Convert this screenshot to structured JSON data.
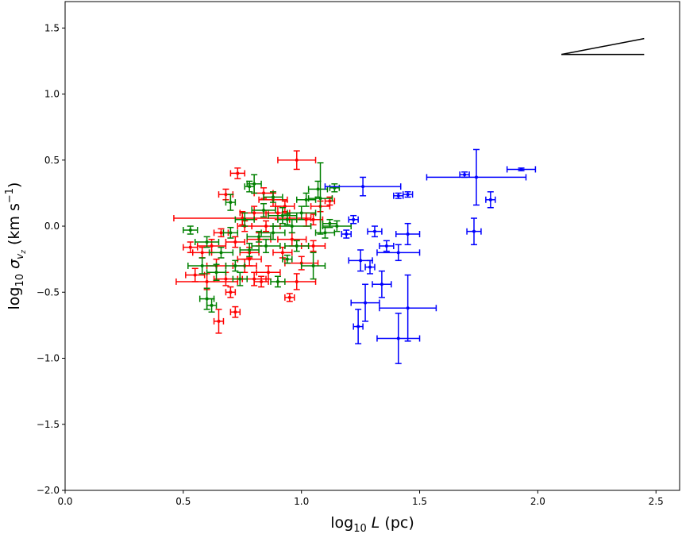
{
  "chart_data": {
    "type": "scatter",
    "title": "",
    "xlabel": {
      "prefix": "log",
      "sub": "10",
      "var": "L",
      "unit": " (pc)"
    },
    "ylabel": {
      "prefix": "log",
      "sub": "10",
      "var": "σ",
      "varsub": "v",
      "varsubsub": "z",
      "unit": " (km s",
      "exp": "−1",
      "close": ")"
    },
    "xlim": [
      0.0,
      2.6
    ],
    "ylim": [
      -2.0,
      1.7
    ],
    "xticks": [
      0.0,
      0.5,
      1.0,
      1.5,
      2.0,
      2.5
    ],
    "xtick_labels": [
      "0.0",
      "0.5",
      "1.0",
      "1.5",
      "2.0",
      "2.5"
    ],
    "yticks": [
      -2.0,
      -1.5,
      -1.0,
      -0.5,
      0.0,
      0.5,
      1.0,
      1.5
    ],
    "ytick_labels": [
      "−2.0",
      "−1.5",
      "−1.0",
      "−0.5",
      "0.0",
      "0.5",
      "1.0",
      "1.5"
    ],
    "grid": false,
    "legend": "none",
    "slope_guide": {
      "x": [
        2.1,
        2.45
      ],
      "y0": 1.3,
      "y1": 1.42
    },
    "series": [
      {
        "color": "#ff0000",
        "points": [
          {
            "x": 0.73,
            "y": 0.4,
            "xerr": 0.03,
            "yerr": 0.04
          },
          {
            "x": 0.98,
            "y": 0.5,
            "xerr": 0.08,
            "yerr": 0.07
          },
          {
            "x": 0.68,
            "y": 0.24,
            "xerr": 0.03,
            "yerr": 0.04
          },
          {
            "x": 0.75,
            "y": 0.06,
            "xerr": 0.29,
            "yerr": 0.05
          },
          {
            "x": 0.72,
            "y": -0.65,
            "xerr": 0.02,
            "yerr": 0.04
          },
          {
            "x": 0.65,
            "y": -0.72,
            "xerr": 0.02,
            "yerr": 0.09
          },
          {
            "x": 0.6,
            "y": -0.42,
            "xerr": 0.13,
            "yerr": 0.06
          },
          {
            "x": 0.55,
            "y": -0.37,
            "xerr": 0.04,
            "yerr": 0.05
          },
          {
            "x": 0.95,
            "y": -0.54,
            "xerr": 0.02,
            "yerr": 0.03
          },
          {
            "x": 0.98,
            "y": -0.42,
            "xerr": 0.08,
            "yerr": 0.06
          },
          {
            "x": 1.0,
            "y": -0.28,
            "xerr": 0.07,
            "yerr": 0.05
          },
          {
            "x": 1.12,
            "y": 0.19,
            "xerr": 0.02,
            "yerr": 0.03
          },
          {
            "x": 1.08,
            "y": 0.15,
            "xerr": 0.04,
            "yerr": 0.04
          },
          {
            "x": 1.05,
            "y": 0.05,
            "xerr": 0.03,
            "yerr": 0.04
          },
          {
            "x": 0.9,
            "y": 0.1,
            "xerr": 0.05,
            "yerr": 0.05
          },
          {
            "x": 0.85,
            "y": 0.0,
            "xerr": 0.06,
            "yerr": 0.04
          },
          {
            "x": 0.82,
            "y": -0.1,
            "xerr": 0.05,
            "yerr": 0.05
          },
          {
            "x": 0.78,
            "y": -0.2,
            "xerr": 0.04,
            "yerr": 0.04
          },
          {
            "x": 0.76,
            "y": -0.3,
            "xerr": 0.05,
            "yerr": 0.05
          },
          {
            "x": 0.8,
            "y": -0.4,
            "xerr": 0.05,
            "yerr": 0.05
          },
          {
            "x": 0.7,
            "y": -0.5,
            "xerr": 0.02,
            "yerr": 0.04
          },
          {
            "x": 0.62,
            "y": -0.15,
            "xerr": 0.06,
            "yerr": 0.05
          },
          {
            "x": 0.58,
            "y": -0.2,
            "xerr": 0.04,
            "yerr": 0.04
          },
          {
            "x": 0.66,
            "y": -0.05,
            "xerr": 0.03,
            "yerr": 0.03
          },
          {
            "x": 0.72,
            "y": -0.12,
            "xerr": 0.04,
            "yerr": 0.04
          },
          {
            "x": 0.88,
            "y": 0.2,
            "xerr": 0.06,
            "yerr": 0.05
          },
          {
            "x": 0.93,
            "y": 0.15,
            "xerr": 0.04,
            "yerr": 0.04
          },
          {
            "x": 1.02,
            "y": 0.05,
            "xerr": 0.07,
            "yerr": 0.05
          },
          {
            "x": 0.96,
            "y": -0.1,
            "xerr": 0.06,
            "yerr": 0.05
          },
          {
            "x": 0.92,
            "y": -0.2,
            "xerr": 0.04,
            "yerr": 0.04
          },
          {
            "x": 0.86,
            "y": -0.35,
            "xerr": 0.05,
            "yerr": 0.05
          },
          {
            "x": 0.83,
            "y": -0.42,
            "xerr": 0.03,
            "yerr": 0.04
          },
          {
            "x": 0.78,
            "y": -0.25,
            "xerr": 0.05,
            "yerr": 0.05
          },
          {
            "x": 0.64,
            "y": -0.3,
            "xerr": 0.04,
            "yerr": 0.05
          },
          {
            "x": 0.68,
            "y": -0.4,
            "xerr": 0.05,
            "yerr": 0.05
          },
          {
            "x": 0.53,
            "y": -0.16,
            "xerr": 0.03,
            "yerr": 0.04
          },
          {
            "x": 1.05,
            "y": -0.15,
            "xerr": 0.05,
            "yerr": 0.04
          },
          {
            "x": 0.8,
            "y": 0.1,
            "xerr": 0.06,
            "yerr": 0.05
          },
          {
            "x": 0.84,
            "y": 0.25,
            "xerr": 0.04,
            "yerr": 0.04
          },
          {
            "x": 0.76,
            "y": 0.0,
            "xerr": 0.03,
            "yerr": 0.04
          }
        ]
      },
      {
        "color": "#008000",
        "points": [
          {
            "x": 0.53,
            "y": -0.03,
            "xerr": 0.03,
            "yerr": 0.03
          },
          {
            "x": 0.6,
            "y": -0.55,
            "xerr": 0.03,
            "yerr": 0.08
          },
          {
            "x": 0.62,
            "y": -0.6,
            "xerr": 0.02,
            "yerr": 0.05
          },
          {
            "x": 0.58,
            "y": -0.3,
            "xerr": 0.06,
            "yerr": 0.06
          },
          {
            "x": 0.7,
            "y": 0.18,
            "xerr": 0.02,
            "yerr": 0.06
          },
          {
            "x": 0.8,
            "y": 0.32,
            "xerr": 0.03,
            "yerr": 0.07
          },
          {
            "x": 0.78,
            "y": 0.3,
            "xerr": 0.02,
            "yerr": 0.04
          },
          {
            "x": 1.07,
            "y": 0.28,
            "xerr": 0.04,
            "yerr": 0.06
          },
          {
            "x": 1.08,
            "y": 0.21,
            "xerr": 0.05,
            "yerr": 0.27
          },
          {
            "x": 1.14,
            "y": 0.29,
            "xerr": 0.02,
            "yerr": 0.03
          },
          {
            "x": 1.12,
            "y": 0.02,
            "xerr": 0.03,
            "yerr": 0.03
          },
          {
            "x": 1.15,
            "y": 0.0,
            "xerr": 0.06,
            "yerr": 0.04
          },
          {
            "x": 1.05,
            "y": -0.3,
            "xerr": 0.05,
            "yerr": 0.1
          },
          {
            "x": 0.9,
            "y": -0.42,
            "xerr": 0.03,
            "yerr": 0.04
          },
          {
            "x": 0.94,
            "y": -0.25,
            "xerr": 0.02,
            "yerr": 0.03
          },
          {
            "x": 0.85,
            "y": -0.15,
            "xerr": 0.06,
            "yerr": 0.05
          },
          {
            "x": 0.88,
            "y": -0.05,
            "xerr": 0.05,
            "yerr": 0.05
          },
          {
            "x": 0.92,
            "y": 0.08,
            "xerr": 0.06,
            "yerr": 0.06
          },
          {
            "x": 0.96,
            "y": 0.0,
            "xerr": 0.08,
            "yerr": 0.05
          },
          {
            "x": 1.0,
            "y": 0.1,
            "xerr": 0.06,
            "yerr": 0.05
          },
          {
            "x": 0.74,
            "y": -0.4,
            "xerr": 0.03,
            "yerr": 0.05
          },
          {
            "x": 0.72,
            "y": -0.3,
            "xerr": 0.04,
            "yerr": 0.04
          },
          {
            "x": 0.66,
            "y": -0.2,
            "xerr": 0.05,
            "yerr": 0.04
          },
          {
            "x": 0.64,
            "y": -0.35,
            "xerr": 0.04,
            "yerr": 0.06
          },
          {
            "x": 0.7,
            "y": -0.05,
            "xerr": 0.03,
            "yerr": 0.04
          },
          {
            "x": 0.76,
            "y": 0.05,
            "xerr": 0.04,
            "yerr": 0.05
          },
          {
            "x": 0.82,
            "y": -0.08,
            "xerr": 0.05,
            "yerr": 0.04
          },
          {
            "x": 0.88,
            "y": 0.22,
            "xerr": 0.04,
            "yerr": 0.04
          },
          {
            "x": 0.98,
            "y": -0.15,
            "xerr": 0.05,
            "yerr": 0.04
          },
          {
            "x": 1.02,
            "y": 0.2,
            "xerr": 0.04,
            "yerr": 0.05
          },
          {
            "x": 0.6,
            "y": -0.12,
            "xerr": 0.05,
            "yerr": 0.04
          },
          {
            "x": 0.78,
            "y": -0.18,
            "xerr": 0.04,
            "yerr": 0.05
          },
          {
            "x": 0.84,
            "y": 0.12,
            "xerr": 0.05,
            "yerr": 0.05
          },
          {
            "x": 0.94,
            "y": 0.05,
            "xerr": 0.04,
            "yerr": 0.04
          },
          {
            "x": 1.1,
            "y": -0.05,
            "xerr": 0.04,
            "yerr": 0.04
          }
        ]
      },
      {
        "color": "#0000ff",
        "points": [
          {
            "x": 1.26,
            "y": 0.3,
            "xerr": 0.16,
            "yerr": 0.07
          },
          {
            "x": 1.41,
            "y": 0.23,
            "xerr": 0.02,
            "yerr": 0.02
          },
          {
            "x": 1.45,
            "y": 0.24,
            "xerr": 0.02,
            "yerr": 0.02
          },
          {
            "x": 1.22,
            "y": 0.05,
            "xerr": 0.02,
            "yerr": 0.03
          },
          {
            "x": 1.19,
            "y": -0.06,
            "xerr": 0.02,
            "yerr": 0.03
          },
          {
            "x": 1.31,
            "y": -0.04,
            "xerr": 0.03,
            "yerr": 0.04
          },
          {
            "x": 1.36,
            "y": -0.15,
            "xerr": 0.03,
            "yerr": 0.04
          },
          {
            "x": 1.45,
            "y": -0.06,
            "xerr": 0.05,
            "yerr": 0.08
          },
          {
            "x": 1.41,
            "y": -0.2,
            "xerr": 0.09,
            "yerr": 0.06
          },
          {
            "x": 1.25,
            "y": -0.26,
            "xerr": 0.05,
            "yerr": 0.08
          },
          {
            "x": 1.29,
            "y": -0.31,
            "xerr": 0.02,
            "yerr": 0.05
          },
          {
            "x": 1.34,
            "y": -0.44,
            "xerr": 0.04,
            "yerr": 0.1
          },
          {
            "x": 1.27,
            "y": -0.58,
            "xerr": 0.06,
            "yerr": 0.14
          },
          {
            "x": 1.45,
            "y": -0.62,
            "xerr": 0.12,
            "yerr": 0.25
          },
          {
            "x": 1.24,
            "y": -0.76,
            "xerr": 0.02,
            "yerr": 0.13
          },
          {
            "x": 1.41,
            "y": -0.85,
            "xerr": 0.09,
            "yerr": 0.19
          },
          {
            "x": 1.69,
            "y": 0.39,
            "xerr": 0.02,
            "yerr": 0.02
          },
          {
            "x": 1.74,
            "y": 0.37,
            "xerr": 0.21,
            "yerr": 0.21
          },
          {
            "x": 1.93,
            "y": 0.43,
            "xerr": 0.06,
            "yerr": 0.01
          },
          {
            "x": 1.8,
            "y": 0.2,
            "xerr": 0.02,
            "yerr": 0.06
          },
          {
            "x": 1.73,
            "y": -0.04,
            "xerr": 0.03,
            "yerr": 0.1
          }
        ]
      }
    ]
  }
}
